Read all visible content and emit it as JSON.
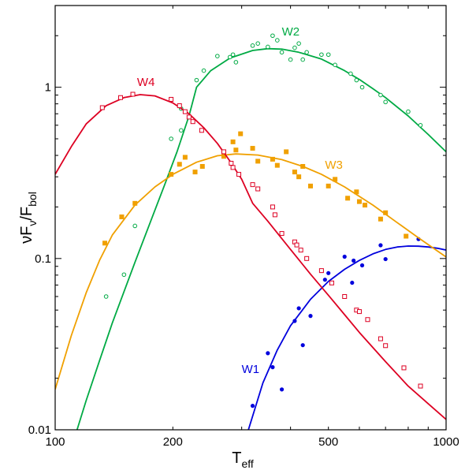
{
  "chart_data": {
    "type": "scatter",
    "xscale": "log",
    "yscale": "log",
    "xlim": [
      100,
      1000
    ],
    "ylim": [
      0.01,
      3
    ],
    "xlabel": {
      "main": "T",
      "sub": "eff"
    },
    "ylabel": {
      "nu": "ν",
      "F1": "F",
      "sub1": "ν",
      "slash": "/",
      "F2": "F",
      "sub2": "bol"
    },
    "xticks": [
      {
        "value": 100,
        "label": "100"
      },
      {
        "value": 200,
        "label": "200"
      },
      {
        "value": 500,
        "label": "500"
      },
      {
        "value": 1000,
        "label": "1000"
      }
    ],
    "yticks": [
      {
        "value": 0.01,
        "label": "0.01"
      },
      {
        "value": 0.1,
        "label": "0.1"
      },
      {
        "value": 1,
        "label": "1"
      }
    ],
    "grid": false,
    "series": [
      {
        "name": "W1",
        "color": "#0000dd",
        "marker": "filled-circle",
        "label_pos": [
          300,
          0.0215
        ],
        "points": [
          [
            320,
            0.0138
          ],
          [
            350,
            0.028
          ],
          [
            360,
            0.0232
          ],
          [
            380,
            0.0172
          ],
          [
            410,
            0.0432
          ],
          [
            420,
            0.0512
          ],
          [
            430,
            0.0312
          ],
          [
            450,
            0.0462
          ],
          [
            490,
            0.0752
          ],
          [
            500,
            0.0822
          ],
          [
            550,
            0.1025
          ],
          [
            575,
            0.0722
          ],
          [
            580,
            0.0972
          ],
          [
            610,
            0.0912
          ],
          [
            680,
            0.1195
          ],
          [
            700,
            0.0992
          ],
          [
            850,
            0.1298
          ]
        ],
        "curve": [
          [
            310,
            0.0095
          ],
          [
            340,
            0.0188
          ],
          [
            370,
            0.0292
          ],
          [
            400,
            0.0405
          ],
          [
            450,
            0.0578
          ],
          [
            500,
            0.0735
          ],
          [
            550,
            0.0865
          ],
          [
            600,
            0.0975
          ],
          [
            650,
            0.1065
          ],
          [
            700,
            0.113
          ],
          [
            750,
            0.1168
          ],
          [
            800,
            0.1182
          ],
          [
            850,
            0.118
          ],
          [
            900,
            0.1168
          ],
          [
            950,
            0.1148
          ],
          [
            1000,
            0.112
          ]
        ]
      },
      {
        "name": "W2",
        "color": "#00aa44",
        "marker": "open-circle",
        "label_pos": [
          380,
          2.0
        ],
        "points": [
          [
            135,
            0.06
          ],
          [
            150,
            0.0805
          ],
          [
            160,
            0.155
          ],
          [
            198,
            0.5
          ],
          [
            210,
            0.56
          ],
          [
            210,
            0.75
          ],
          [
            230,
            1.1
          ],
          [
            240,
            1.25
          ],
          [
            260,
            1.52
          ],
          [
            280,
            1.5
          ],
          [
            285,
            1.55
          ],
          [
            290,
            1.4
          ],
          [
            320,
            1.75
          ],
          [
            330,
            1.8
          ],
          [
            350,
            1.72
          ],
          [
            360,
            2.0
          ],
          [
            370,
            1.88
          ],
          [
            380,
            1.6
          ],
          [
            400,
            1.45
          ],
          [
            410,
            1.7
          ],
          [
            420,
            1.8
          ],
          [
            430,
            1.45
          ],
          [
            440,
            1.6
          ],
          [
            480,
            1.55
          ],
          [
            500,
            1.55
          ],
          [
            520,
            1.35
          ],
          [
            570,
            1.2
          ],
          [
            590,
            1.1
          ],
          [
            610,
            1.0
          ],
          [
            680,
            0.9
          ],
          [
            700,
            0.82
          ],
          [
            800,
            0.72
          ],
          [
            860,
            0.6
          ]
        ],
        "curve": [
          [
            110,
            0.0078
          ],
          [
            120,
            0.0148
          ],
          [
            130,
            0.0255
          ],
          [
            140,
            0.042
          ],
          [
            150,
            0.064
          ],
          [
            160,
            0.095
          ],
          [
            175,
            0.162
          ],
          [
            190,
            0.265
          ],
          [
            205,
            0.42
          ],
          [
            220,
            0.68
          ],
          [
            230,
            1.0
          ],
          [
            250,
            1.25
          ],
          [
            280,
            1.48
          ],
          [
            320,
            1.64
          ],
          [
            350,
            1.68
          ],
          [
            380,
            1.67
          ],
          [
            420,
            1.6
          ],
          [
            480,
            1.46
          ],
          [
            550,
            1.25
          ],
          [
            600,
            1.11
          ],
          [
            650,
            0.98
          ],
          [
            700,
            0.87
          ],
          [
            800,
            0.68
          ],
          [
            900,
            0.53
          ],
          [
            1000,
            0.42
          ]
        ]
      },
      {
        "name": "W3",
        "color": "#f0a000",
        "marker": "filled-square",
        "label_pos": [
          490,
          0.335
        ],
        "points": [
          [
            134,
            0.123
          ],
          [
            148,
            0.175
          ],
          [
            160,
            0.21
          ],
          [
            198,
            0.31
          ],
          [
            208,
            0.355
          ],
          [
            215,
            0.39
          ],
          [
            228,
            0.32
          ],
          [
            238,
            0.345
          ],
          [
            270,
            0.42
          ],
          [
            270,
            0.395
          ],
          [
            285,
            0.48
          ],
          [
            290,
            0.43
          ],
          [
            298,
            0.535
          ],
          [
            320,
            0.44
          ],
          [
            330,
            0.37
          ],
          [
            360,
            0.38
          ],
          [
            370,
            0.35
          ],
          [
            390,
            0.42
          ],
          [
            410,
            0.32
          ],
          [
            420,
            0.3
          ],
          [
            430,
            0.345
          ],
          [
            450,
            0.265
          ],
          [
            500,
            0.265
          ],
          [
            520,
            0.29
          ],
          [
            560,
            0.225
          ],
          [
            590,
            0.245
          ],
          [
            600,
            0.215
          ],
          [
            620,
            0.205
          ],
          [
            680,
            0.17
          ],
          [
            700,
            0.185
          ],
          [
            790,
            0.135
          ]
        ],
        "curve": [
          [
            100,
            0.0172
          ],
          [
            110,
            0.0355
          ],
          [
            120,
            0.063
          ],
          [
            130,
            0.098
          ],
          [
            140,
            0.137
          ],
          [
            160,
            0.205
          ],
          [
            180,
            0.262
          ],
          [
            200,
            0.31
          ],
          [
            230,
            0.365
          ],
          [
            260,
            0.398
          ],
          [
            290,
            0.408
          ],
          [
            330,
            0.402
          ],
          [
            380,
            0.378
          ],
          [
            430,
            0.345
          ],
          [
            480,
            0.31
          ],
          [
            550,
            0.262
          ],
          [
            650,
            0.205
          ],
          [
            750,
            0.162
          ],
          [
            850,
            0.132
          ],
          [
            1000,
            0.102
          ]
        ]
      },
      {
        "name": "W4",
        "color": "#dd0022",
        "marker": "open-square",
        "label_pos": [
          162,
          1.02
        ],
        "points": [
          [
            132,
            0.76
          ],
          [
            147,
            0.87
          ],
          [
            158,
            0.91
          ],
          [
            198,
            0.85
          ],
          [
            208,
            0.78
          ],
          [
            215,
            0.72
          ],
          [
            220,
            0.67
          ],
          [
            225,
            0.63
          ],
          [
            237,
            0.56
          ],
          [
            270,
            0.42
          ],
          [
            282,
            0.36
          ],
          [
            285,
            0.34
          ],
          [
            295,
            0.31
          ],
          [
            320,
            0.27
          ],
          [
            330,
            0.255
          ],
          [
            360,
            0.2
          ],
          [
            365,
            0.18
          ],
          [
            380,
            0.14
          ],
          [
            410,
            0.125
          ],
          [
            415,
            0.12
          ],
          [
            425,
            0.112
          ],
          [
            440,
            0.1
          ],
          [
            480,
            0.085
          ],
          [
            510,
            0.072
          ],
          [
            550,
            0.06
          ],
          [
            590,
            0.05
          ],
          [
            600,
            0.049
          ],
          [
            630,
            0.044
          ],
          [
            680,
            0.034
          ],
          [
            700,
            0.031
          ],
          [
            780,
            0.023
          ],
          [
            860,
            0.018
          ]
        ],
        "curve": [
          [
            100,
            0.31
          ],
          [
            110,
            0.45
          ],
          [
            120,
            0.61
          ],
          [
            135,
            0.78
          ],
          [
            150,
            0.87
          ],
          [
            165,
            0.905
          ],
          [
            180,
            0.89
          ],
          [
            200,
            0.81
          ],
          [
            220,
            0.7
          ],
          [
            240,
            0.58
          ],
          [
            260,
            0.47
          ],
          [
            280,
            0.37
          ],
          [
            300,
            0.29
          ],
          [
            320,
            0.21
          ],
          [
            350,
            0.165
          ],
          [
            400,
            0.113
          ],
          [
            450,
            0.081
          ],
          [
            500,
            0.061
          ],
          [
            550,
            0.047
          ],
          [
            600,
            0.037
          ],
          [
            700,
            0.025
          ],
          [
            800,
            0.018
          ],
          [
            900,
            0.0142
          ],
          [
            1000,
            0.0115
          ]
        ]
      }
    ]
  }
}
